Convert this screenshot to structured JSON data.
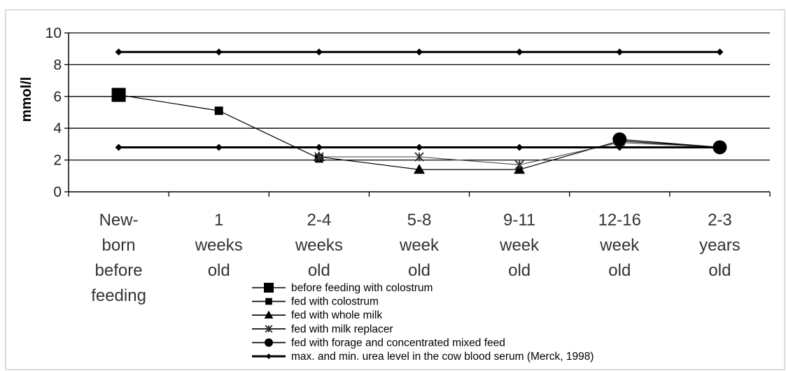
{
  "chart_data": {
    "type": "line",
    "title": "",
    "xlabel": "",
    "ylabel": "mmol/l",
    "ylim": [
      0,
      10
    ],
    "yticks": [
      0,
      2,
      4,
      6,
      8,
      10
    ],
    "grid": true,
    "legend_position": "bottom-center",
    "categories": [
      [
        "New-",
        "born",
        "before",
        "feeding"
      ],
      [
        "1",
        "weeks",
        "old"
      ],
      [
        "2-4",
        "weeks",
        "old"
      ],
      [
        "5-8",
        "week",
        "old"
      ],
      [
        "9-11",
        "week",
        "old"
      ],
      [
        "12-16",
        "week",
        "old"
      ],
      [
        "2-3",
        "years",
        "old"
      ]
    ],
    "series": [
      {
        "name": "before feeding with colostrum",
        "marker": "square-large",
        "values": [
          6.1,
          null,
          null,
          null,
          null,
          null,
          null
        ]
      },
      {
        "name": "fed with colostrum",
        "marker": "square",
        "values": [
          6.1,
          5.1,
          2.1,
          null,
          null,
          null,
          null
        ]
      },
      {
        "name": "fed with whole milk",
        "marker": "triangle",
        "values": [
          null,
          null,
          2.2,
          1.4,
          1.4,
          3.2,
          2.8
        ]
      },
      {
        "name": "fed with milk replacer",
        "marker": "star",
        "values": [
          null,
          null,
          2.2,
          2.2,
          1.7,
          3.1,
          2.8
        ]
      },
      {
        "name": "fed with forage and concentrated mixed feed",
        "marker": "circle",
        "values": [
          null,
          null,
          null,
          null,
          null,
          3.3,
          2.8
        ]
      },
      {
        "name": "max. and min. urea level in the cow blood serum (Merck, 1998)",
        "marker": "diamond",
        "values": [
          8.8,
          8.8,
          8.8,
          8.8,
          8.8,
          8.8,
          8.8
        ]
      },
      {
        "name": "",
        "marker": "diamond",
        "values": [
          2.8,
          2.8,
          2.8,
          2.8,
          2.8,
          2.8,
          2.8
        ]
      }
    ]
  }
}
